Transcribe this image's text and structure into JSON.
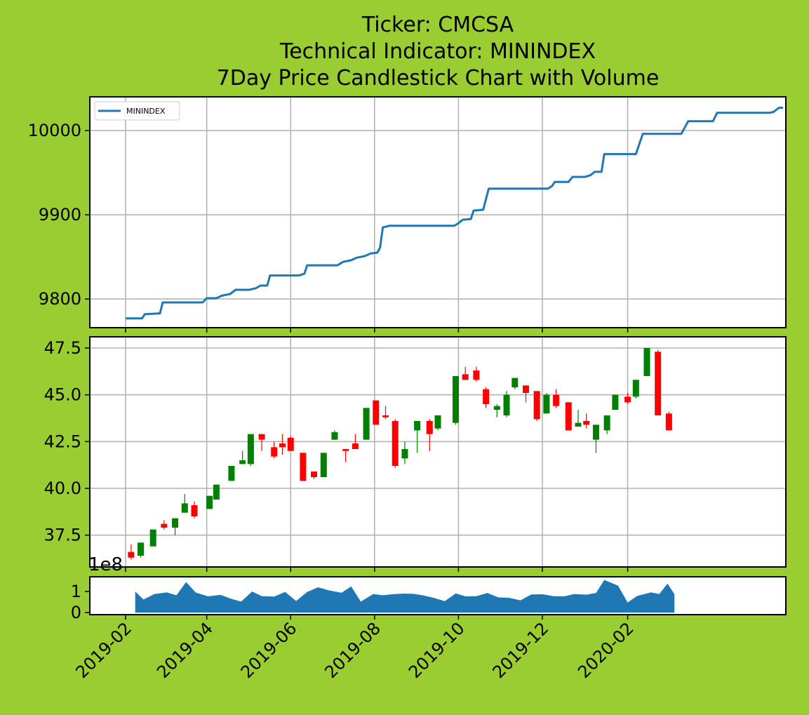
{
  "title_lines": [
    "Ticker: CMCSA",
    "Technical Indicator: MININDEX",
    "7Day Price Candlestick Chart with Volume"
  ],
  "colors": {
    "background": "#9acd32",
    "line": "#1f77b4",
    "up": "#008000",
    "down": "#ff0000",
    "volume": "#1f77b4",
    "grid": "#b0b0b0"
  },
  "x_ticks": [
    "2019-02",
    "2019-04",
    "2019-06",
    "2019-08",
    "2019-10",
    "2019-12",
    "2020-02"
  ],
  "chart_data": [
    {
      "type": "line",
      "panel": "indicator",
      "legend": "MININDEX",
      "legend_position": "top-left",
      "grid": true,
      "ylim": [
        9766,
        10040
      ],
      "y_ticks": [
        "9800",
        "9900",
        "10000"
      ],
      "points": [
        [
          "2019-02-01",
          9777
        ],
        [
          "2019-02-13",
          9777
        ],
        [
          "2019-02-15",
          9782
        ],
        [
          "2019-02-26",
          9783
        ],
        [
          "2019-02-28",
          9796
        ],
        [
          "2019-03-29",
          9796
        ],
        [
          "2019-04-01",
          9801
        ],
        [
          "2019-04-08",
          9801
        ],
        [
          "2019-04-12",
          9804
        ],
        [
          "2019-04-18",
          9806
        ],
        [
          "2019-04-22",
          9811
        ],
        [
          "2019-05-02",
          9811
        ],
        [
          "2019-05-07",
          9813
        ],
        [
          "2019-05-10",
          9816
        ],
        [
          "2019-05-15",
          9816
        ],
        [
          "2019-05-17",
          9828
        ],
        [
          "2019-06-07",
          9828
        ],
        [
          "2019-06-11",
          9830
        ],
        [
          "2019-06-13",
          9840
        ],
        [
          "2019-07-05",
          9840
        ],
        [
          "2019-07-09",
          9844
        ],
        [
          "2019-07-15",
          9846
        ],
        [
          "2019-07-19",
          9849
        ],
        [
          "2019-07-25",
          9851
        ],
        [
          "2019-07-29",
          9854
        ],
        [
          "2019-08-03",
          9855
        ],
        [
          "2019-08-05",
          9861
        ],
        [
          "2019-08-07",
          9885
        ],
        [
          "2019-08-12",
          9887
        ],
        [
          "2019-09-28",
          9887
        ],
        [
          "2019-10-01",
          9890
        ],
        [
          "2019-10-04",
          9894
        ],
        [
          "2019-10-10",
          9895
        ],
        [
          "2019-10-12",
          9905
        ],
        [
          "2019-10-19",
          9906
        ],
        [
          "2019-10-23",
          9931
        ],
        [
          "2019-12-05",
          9931
        ],
        [
          "2019-12-08",
          9934
        ],
        [
          "2019-12-10",
          9939
        ],
        [
          "2019-12-20",
          9939
        ],
        [
          "2019-12-23",
          9945
        ],
        [
          "2020-01-01",
          9945
        ],
        [
          "2020-01-05",
          9947
        ],
        [
          "2020-01-08",
          9951
        ],
        [
          "2020-01-13",
          9951
        ],
        [
          "2020-01-15",
          9972
        ],
        [
          "2020-02-07",
          9972
        ],
        [
          "2020-02-12",
          9996
        ],
        [
          "2020-03-11",
          9996
        ],
        [
          "2020-03-16",
          10011
        ],
        [
          "2020-04-03",
          10011
        ],
        [
          "2020-04-06",
          10021
        ],
        [
          "2020-05-14",
          10021
        ],
        [
          "2020-05-17",
          10022
        ],
        [
          "2020-05-21",
          10027
        ],
        [
          "2020-05-24",
          10027
        ]
      ]
    },
    {
      "type": "candlestick",
      "panel": "price",
      "grid": true,
      "ylim": [
        35.8,
        48.1
      ],
      "y_ticks": [
        "37.5",
        "40.0",
        "42.5",
        "45.0",
        "47.5"
      ],
      "candles": [
        [
          "2019-02-05",
          36.6,
          36.3,
          37.0,
          36.2
        ],
        [
          "2019-02-12",
          36.4,
          37.1,
          37.1,
          36.3
        ],
        [
          "2019-02-21",
          36.9,
          37.8,
          37.8,
          36.9
        ],
        [
          "2019-03-01",
          38.1,
          37.9,
          38.3,
          37.8
        ],
        [
          "2019-03-09",
          37.9,
          38.4,
          38.4,
          37.5
        ],
        [
          "2019-03-16",
          38.7,
          39.2,
          39.7,
          38.7
        ],
        [
          "2019-03-23",
          39.1,
          38.5,
          39.3,
          38.4
        ],
        [
          "2019-04-03",
          38.9,
          39.6,
          39.6,
          38.9
        ],
        [
          "2019-04-08",
          39.4,
          40.2,
          40.2,
          39.4
        ],
        [
          "2019-04-19",
          40.4,
          41.2,
          41.2,
          40.4
        ],
        [
          "2019-04-27",
          41.3,
          41.5,
          42.0,
          41.3
        ],
        [
          "2019-05-03",
          41.3,
          42.9,
          42.9,
          41.2
        ],
        [
          "2019-05-11",
          42.9,
          42.6,
          42.9,
          42.0
        ],
        [
          "2019-05-20",
          42.2,
          41.7,
          42.5,
          41.6
        ],
        [
          "2019-05-26",
          42.4,
          42.2,
          42.9,
          41.8
        ],
        [
          "2019-06-01",
          42.7,
          42.0,
          42.8,
          42.0
        ],
        [
          "2019-06-10",
          41.9,
          40.4,
          41.9,
          40.4
        ],
        [
          "2019-06-18",
          40.9,
          40.6,
          40.9,
          40.5
        ],
        [
          "2019-06-25",
          40.6,
          41.9,
          41.9,
          40.6
        ],
        [
          "2019-07-03",
          42.6,
          43.0,
          43.1,
          42.6
        ],
        [
          "2019-07-11",
          42.1,
          42.0,
          42.1,
          41.4
        ],
        [
          "2019-07-18",
          42.4,
          42.1,
          42.9,
          42.1
        ],
        [
          "2019-07-26",
          42.6,
          44.3,
          44.3,
          42.6
        ],
        [
          "2019-08-02",
          44.7,
          43.4,
          44.7,
          43.4
        ],
        [
          "2019-08-09",
          43.9,
          43.8,
          44.4,
          43.7
        ],
        [
          "2019-08-16",
          43.6,
          41.2,
          43.7,
          41.1
        ],
        [
          "2019-08-23",
          41.6,
          42.1,
          42.5,
          41.3
        ],
        [
          "2019-09-01",
          43.1,
          43.6,
          43.6,
          41.9
        ],
        [
          "2019-09-10",
          43.6,
          42.9,
          43.7,
          42.0
        ],
        [
          "2019-09-16",
          43.2,
          43.9,
          43.9,
          43.1
        ],
        [
          "2019-09-29",
          43.5,
          46.0,
          46.0,
          43.4
        ],
        [
          "2019-10-06",
          46.1,
          45.8,
          46.5,
          45.8
        ],
        [
          "2019-10-14",
          46.3,
          45.8,
          46.5,
          45.7
        ],
        [
          "2019-10-21",
          45.3,
          44.5,
          45.4,
          44.3
        ],
        [
          "2019-10-29",
          44.2,
          44.4,
          44.5,
          43.8
        ],
        [
          "2019-11-05",
          43.9,
          45.0,
          45.2,
          43.8
        ],
        [
          "2019-11-11",
          45.4,
          45.9,
          45.9,
          45.3
        ],
        [
          "2019-11-19",
          45.5,
          45.1,
          45.5,
          44.6
        ],
        [
          "2019-11-27",
          45.2,
          43.7,
          45.2,
          43.6
        ],
        [
          "2019-12-04",
          44.0,
          45.0,
          45.1,
          44.0
        ],
        [
          "2019-12-11",
          45.0,
          44.4,
          45.3,
          44.3
        ],
        [
          "2019-12-20",
          44.6,
          43.1,
          44.6,
          43.1
        ],
        [
          "2019-12-27",
          43.3,
          43.5,
          44.2,
          43.3
        ],
        [
          "2020-01-02",
          43.6,
          43.4,
          44.0,
          43.2
        ],
        [
          "2020-01-09",
          42.6,
          43.4,
          43.4,
          41.9
        ],
        [
          "2020-01-17",
          43.1,
          43.9,
          43.9,
          42.9
        ],
        [
          "2020-01-23",
          44.2,
          45.0,
          45.0,
          44.2
        ],
        [
          "2020-02-01",
          44.9,
          44.6,
          45.1,
          44.5
        ],
        [
          "2020-02-07",
          44.9,
          45.8,
          45.8,
          44.8
        ],
        [
          "2020-02-15",
          46.0,
          47.5,
          47.5,
          46.0
        ],
        [
          "2020-02-23",
          47.3,
          43.9,
          47.4,
          43.9
        ],
        [
          "2020-03-02",
          44.0,
          43.1,
          44.1,
          43.1
        ]
      ]
    },
    {
      "type": "area",
      "panel": "volume",
      "grid": false,
      "ylim": [
        -0.1,
        1.7
      ],
      "y_ticks": [
        "0",
        "1"
      ],
      "offset_text": "1e8",
      "points": [
        [
          "2019-02-08",
          1.0
        ],
        [
          "2019-02-14",
          0.62
        ],
        [
          "2019-02-22",
          0.88
        ],
        [
          "2019-03-03",
          0.96
        ],
        [
          "2019-03-10",
          0.82
        ],
        [
          "2019-03-17",
          1.45
        ],
        [
          "2019-03-24",
          0.95
        ],
        [
          "2019-04-02",
          0.77
        ],
        [
          "2019-04-11",
          0.84
        ],
        [
          "2019-04-19",
          0.65
        ],
        [
          "2019-04-26",
          0.52
        ],
        [
          "2019-05-04",
          1.0
        ],
        [
          "2019-05-11",
          0.78
        ],
        [
          "2019-05-20",
          0.76
        ],
        [
          "2019-05-28",
          0.98
        ],
        [
          "2019-06-05",
          0.55
        ],
        [
          "2019-06-13",
          0.98
        ],
        [
          "2019-06-21",
          1.2
        ],
        [
          "2019-06-29",
          1.05
        ],
        [
          "2019-07-08",
          0.94
        ],
        [
          "2019-07-15",
          1.24
        ],
        [
          "2019-07-22",
          0.52
        ],
        [
          "2019-07-31",
          0.88
        ],
        [
          "2019-08-07",
          0.82
        ],
        [
          "2019-08-14",
          0.87
        ],
        [
          "2019-08-22",
          0.9
        ],
        [
          "2019-08-29",
          0.89
        ],
        [
          "2019-09-05",
          0.82
        ],
        [
          "2019-09-13",
          0.7
        ],
        [
          "2019-09-21",
          0.54
        ],
        [
          "2019-09-29",
          0.91
        ],
        [
          "2019-10-06",
          0.77
        ],
        [
          "2019-10-14",
          0.78
        ],
        [
          "2019-10-22",
          0.93
        ],
        [
          "2019-10-30",
          0.72
        ],
        [
          "2019-11-07",
          0.7
        ],
        [
          "2019-11-15",
          0.58
        ],
        [
          "2019-11-23",
          0.86
        ],
        [
          "2019-12-01",
          0.87
        ],
        [
          "2019-12-09",
          0.78
        ],
        [
          "2019-12-17",
          0.77
        ],
        [
          "2019-12-24",
          0.88
        ],
        [
          "2020-01-02",
          0.85
        ],
        [
          "2020-01-09",
          0.93
        ],
        [
          "2020-01-15",
          1.55
        ],
        [
          "2020-01-25",
          1.28
        ],
        [
          "2020-02-01",
          0.48
        ],
        [
          "2020-02-08",
          0.79
        ],
        [
          "2020-02-18",
          0.96
        ],
        [
          "2020-02-24",
          0.88
        ],
        [
          "2020-03-01",
          1.38
        ],
        [
          "2020-03-06",
          0.87
        ]
      ]
    }
  ]
}
